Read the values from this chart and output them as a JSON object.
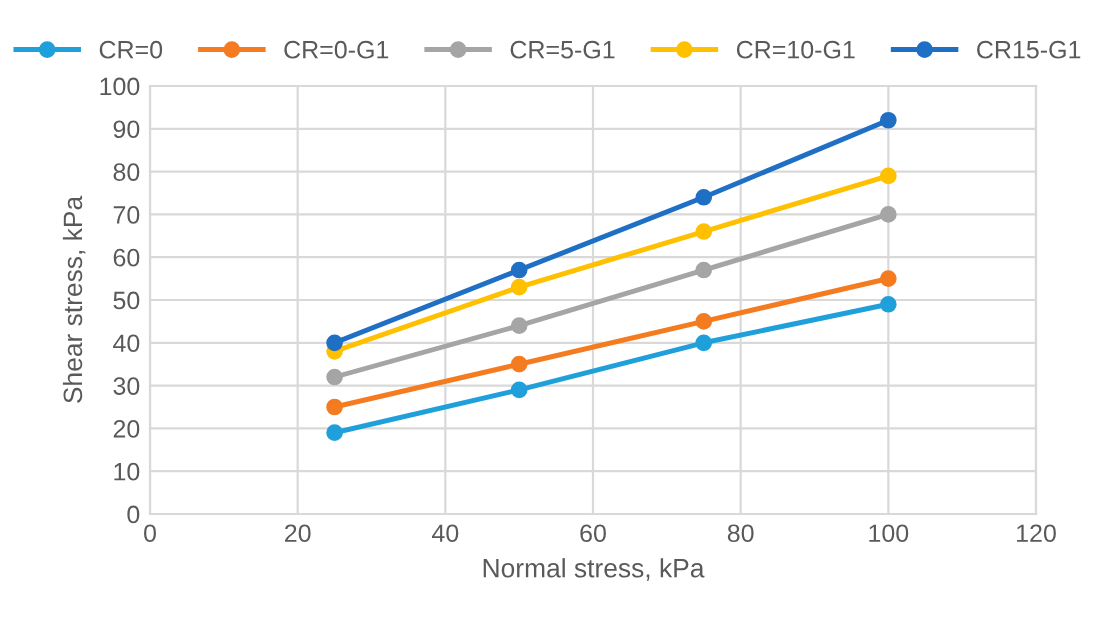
{
  "chart_data": {
    "type": "line",
    "xlabel": "Normal stress, kPa",
    "ylabel": "Shear stress, kPa",
    "x": [
      25,
      50,
      75,
      100
    ],
    "series": [
      {
        "name": "CR=0",
        "color": "#20a0db",
        "values": [
          19,
          29,
          40,
          49
        ]
      },
      {
        "name": "CR=0-G1",
        "color": "#f47b20",
        "values": [
          25,
          35,
          45,
          55
        ]
      },
      {
        "name": "CR=5-G1",
        "color": "#a5a5a5",
        "values": [
          32,
          44,
          57,
          70
        ]
      },
      {
        "name": "CR=10-G1",
        "color": "#ffc000",
        "values": [
          38,
          53,
          66,
          79
        ]
      },
      {
        "name": "CR15-G1",
        "color": "#1f6fc5",
        "values": [
          40,
          57,
          74,
          92
        ]
      }
    ],
    "xlim": [
      0,
      120
    ],
    "xticks": [
      0,
      20,
      40,
      60,
      80,
      100,
      120
    ],
    "ylim": [
      0,
      100
    ],
    "yticks": [
      0,
      10,
      20,
      30,
      40,
      50,
      60,
      70,
      80,
      90,
      100
    ],
    "grid": true,
    "legend": "top",
    "marker": "circle",
    "line_style": "solid"
  }
}
